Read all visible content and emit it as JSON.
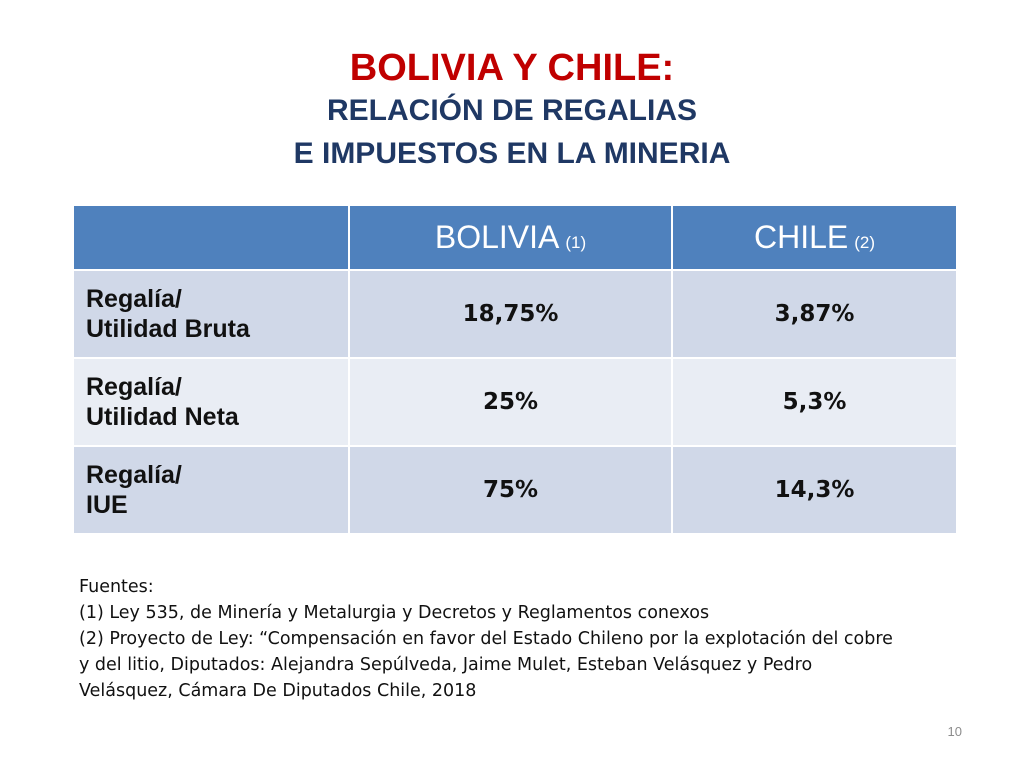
{
  "header": {
    "title": "BOLIVIA Y CHILE:",
    "subtitle_line1": "RELACIÓN DE REGALIAS",
    "subtitle_line2": "E IMPUESTOS EN LA MINERIA"
  },
  "table": {
    "columns": [
      {
        "label": "",
        "note": ""
      },
      {
        "label": "BOLIVIA",
        "note": "(1)"
      },
      {
        "label": "CHILE",
        "note": "(2)"
      }
    ],
    "rows": [
      {
        "label_line1": "Regalía/",
        "label_line2": "Utilidad Bruta",
        "bolivia": "18,75%",
        "chile": "3,87%"
      },
      {
        "label_line1": "Regalía/",
        "label_line2": "Utilidad Neta",
        "bolivia": "25%",
        "chile": "5,3%"
      },
      {
        "label_line1": "Regalía/",
        "label_line2": "IUE",
        "bolivia": "75%",
        "chile": "14,3%"
      }
    ]
  },
  "sources": {
    "heading": "Fuentes:",
    "lines": [
      "(1) Ley 535, de Minería y Metalurgia y Decretos y Reglamentos conexos",
      "(2) Proyecto de Ley: “Compensación en favor del Estado Chileno por la explotación del cobre",
      "y del litio, Diputados: Alejandra Sepúlveda, Jaime Mulet, Esteban Velásquez y Pedro",
      "Velásquez, Cámara De Diputados Chile, 2018"
    ]
  },
  "page_number": "10",
  "colors": {
    "title": "#c00000",
    "subtitle": "#1f3864",
    "table_header": "#4f81bd",
    "row_band_dark": "#d0d8e8",
    "row_band_light": "#e9edf4"
  }
}
